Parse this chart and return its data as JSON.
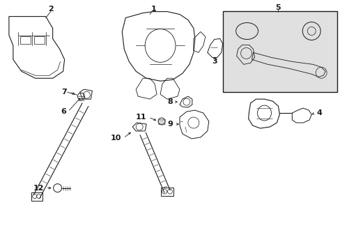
{
  "bg_color": "#ffffff",
  "line_color": "#1a1a1a",
  "gray_fill": "#e0e0e0",
  "fig_width": 4.89,
  "fig_height": 3.6,
  "dpi": 100
}
